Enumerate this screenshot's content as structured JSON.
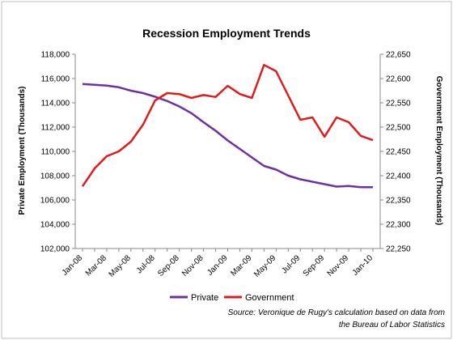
{
  "colors": {
    "private": "#7030a0",
    "government": "#e31a1c",
    "axis": "#888888",
    "border": "#bfbfbf"
  },
  "source_lines": [
    "Source: Veronique de Rugy's calculation based on data from",
    "the Bureau of Labor Statistics"
  ],
  "chart_data": {
    "type": "line",
    "title": "Recession Employment Trends",
    "ylabel": "Private Employment (Thousands)",
    "y2label": "Government Employment (Thousands)",
    "ylim": [
      102000,
      118000
    ],
    "y2lim": [
      22250,
      22650
    ],
    "yticks": [
      102000,
      104000,
      106000,
      108000,
      110000,
      112000,
      114000,
      116000,
      118000
    ],
    "y2ticks": [
      22250,
      22300,
      22350,
      22400,
      22450,
      22500,
      22550,
      22600,
      22650
    ],
    "x_labels": [
      "Jan-08",
      "Mar-08",
      "May-08",
      "Jul-08",
      "Sep-08",
      "Nov-08",
      "Jan-09",
      "Mar-09",
      "May-09",
      "Jul-09",
      "Sep-09",
      "Nov-09",
      "Jan-10"
    ],
    "x_label_every": 2,
    "x": [
      "Jan-08",
      "Feb-08",
      "Mar-08",
      "Apr-08",
      "May-08",
      "Jun-08",
      "Jul-08",
      "Aug-08",
      "Sep-08",
      "Oct-08",
      "Nov-08",
      "Dec-08",
      "Jan-09",
      "Feb-09",
      "Mar-09",
      "Apr-09",
      "May-09",
      "Jun-09",
      "Jul-09",
      "Aug-09",
      "Sep-09",
      "Oct-09",
      "Nov-09",
      "Dec-09",
      "Jan-10"
    ],
    "legend_position": "bottom",
    "grid": false,
    "series": [
      {
        "name": "Private",
        "axis": "left",
        "values": [
          115550,
          115480,
          115420,
          115280,
          115000,
          114800,
          114500,
          114150,
          113700,
          113150,
          112400,
          111700,
          110900,
          110200,
          109500,
          108800,
          108500,
          108000,
          107700,
          107500,
          107300,
          107100,
          107150,
          107050,
          107050
        ]
      },
      {
        "name": "Government",
        "axis": "right",
        "values": [
          22378,
          22415,
          22440,
          22450,
          22470,
          22505,
          22555,
          22570,
          22568,
          22560,
          22566,
          22562,
          22585,
          22568,
          22560,
          22628,
          22615,
          22565,
          22515,
          22520,
          22480,
          22520,
          22510,
          22482,
          22473
        ]
      }
    ]
  }
}
